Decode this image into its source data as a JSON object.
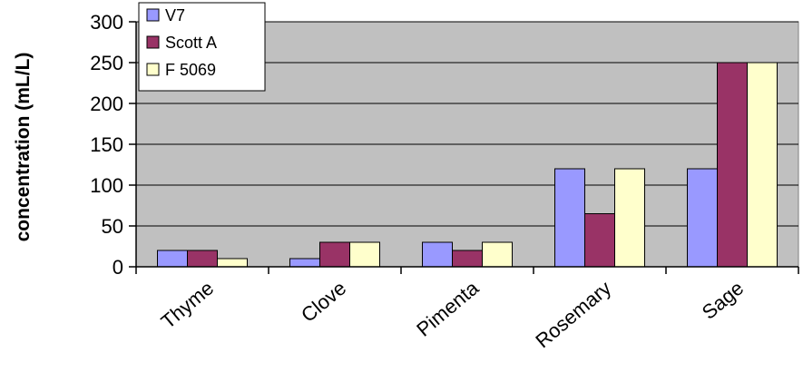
{
  "chart_data": {
    "type": "bar",
    "title": "",
    "xlabel": "",
    "ylabel": "concentration (mL/L)",
    "ylim": [
      0,
      300
    ],
    "yticks": [
      0,
      50,
      100,
      150,
      200,
      250,
      300
    ],
    "grid": true,
    "legend_position": "top-left",
    "categories": [
      "Thyme",
      "Clove",
      "Pimenta",
      "Rosemary",
      "Sage"
    ],
    "series": [
      {
        "name": "V7",
        "color": "#9999ff",
        "values": [
          20,
          10,
          30,
          120,
          120
        ]
      },
      {
        "name": "Scott A",
        "color": "#993366",
        "values": [
          20,
          30,
          20,
          65,
          250
        ]
      },
      {
        "name": "F 5069",
        "color": "#ffffcc",
        "values": [
          10,
          30,
          30,
          120,
          250
        ]
      }
    ],
    "plot_background": "#c0c0c0"
  }
}
